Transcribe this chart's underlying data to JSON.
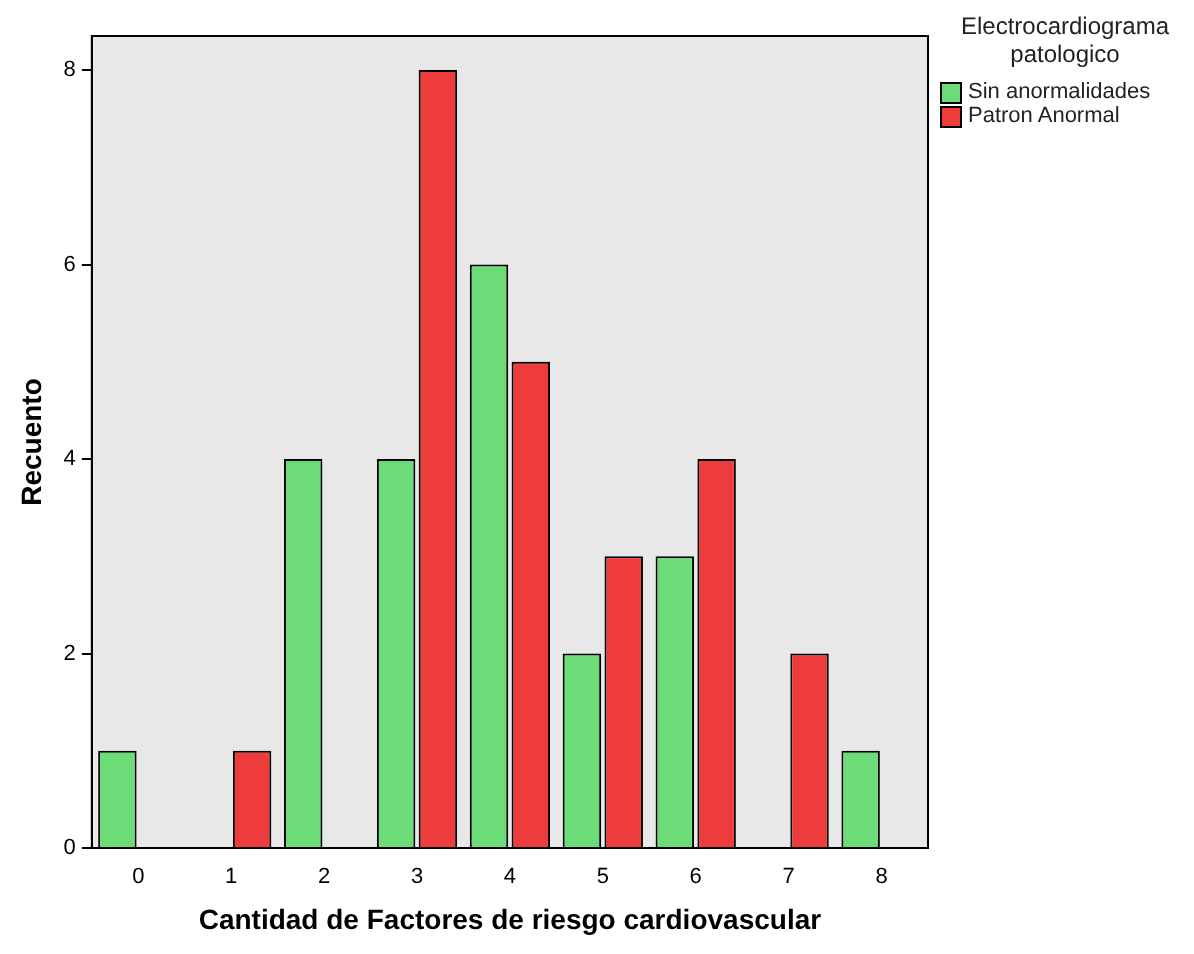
{
  "chart_data": {
    "type": "bar",
    "xlabel": "Cantidad de Factores de riesgo cardiovascular",
    "ylabel": "Recuento",
    "legend_title": "Electrocardiograma patologico",
    "legend": "top right",
    "grid": false,
    "categories": [
      "0",
      "1",
      "2",
      "3",
      "4",
      "5",
      "6",
      "7",
      "8"
    ],
    "ylim": [
      0,
      8.35
    ],
    "yticks": [
      0,
      2,
      4,
      6,
      8
    ],
    "series": [
      {
        "name": "Sin anormalidades",
        "color": "#6cdc78",
        "values": [
          1,
          0,
          4,
          4,
          6,
          2,
          3,
          0,
          1
        ]
      },
      {
        "name": "Patron Anormal",
        "color": "#ee3b3b",
        "values": [
          0,
          1,
          0,
          8,
          5,
          3,
          4,
          2,
          0
        ]
      }
    ]
  }
}
